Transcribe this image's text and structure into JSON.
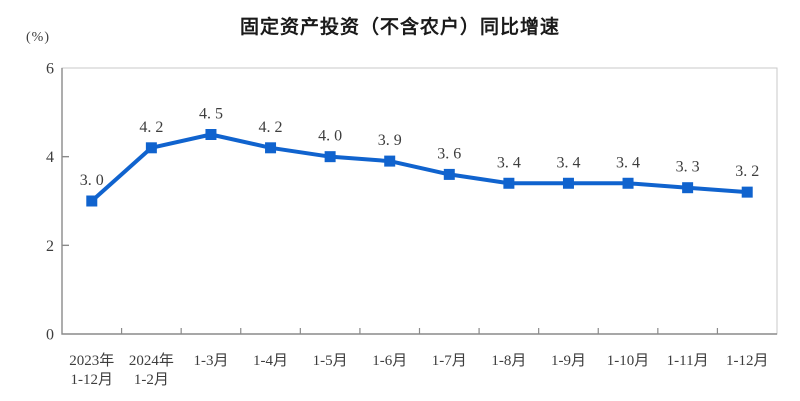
{
  "chart": {
    "unit_label": "(%)",
    "colors": {
      "line": "#1063CE",
      "marker": "#1063CE",
      "label_text": "#3d3d3d",
      "axis_line": "#8a8a8a",
      "plot_border": "#c9c9c9",
      "title_text": "#1a1a1a",
      "background": "#ffffff"
    }
  },
  "chart_data": {
    "type": "line",
    "title": "固定资产投资（不含农户）同比增速",
    "unit": "%",
    "xlabel": "",
    "ylabel": "(%)",
    "ylim": [
      0,
      6
    ],
    "yticks": [
      0,
      2,
      4,
      6
    ],
    "grid": false,
    "legend": "none",
    "categories": [
      [
        "2023年",
        "1-12月"
      ],
      [
        "2024年",
        "1-2月"
      ],
      [
        "1-3月"
      ],
      [
        "1-4月"
      ],
      [
        "1-5月"
      ],
      [
        "1-6月"
      ],
      [
        "1-7月"
      ],
      [
        "1-8月"
      ],
      [
        "1-9月"
      ],
      [
        "1-10月"
      ],
      [
        "1-11月"
      ],
      [
        "1-12月"
      ]
    ],
    "values": [
      3.0,
      4.2,
      4.5,
      4.2,
      4.0,
      3.9,
      3.6,
      3.4,
      3.4,
      3.4,
      3.3,
      3.2
    ],
    "labels": [
      "3. 0",
      "4. 2",
      "4. 5",
      "4. 2",
      "4. 0",
      "3. 9",
      "3. 6",
      "3. 4",
      "3. 4",
      "3. 4",
      "3. 3",
      "3. 2"
    ]
  }
}
